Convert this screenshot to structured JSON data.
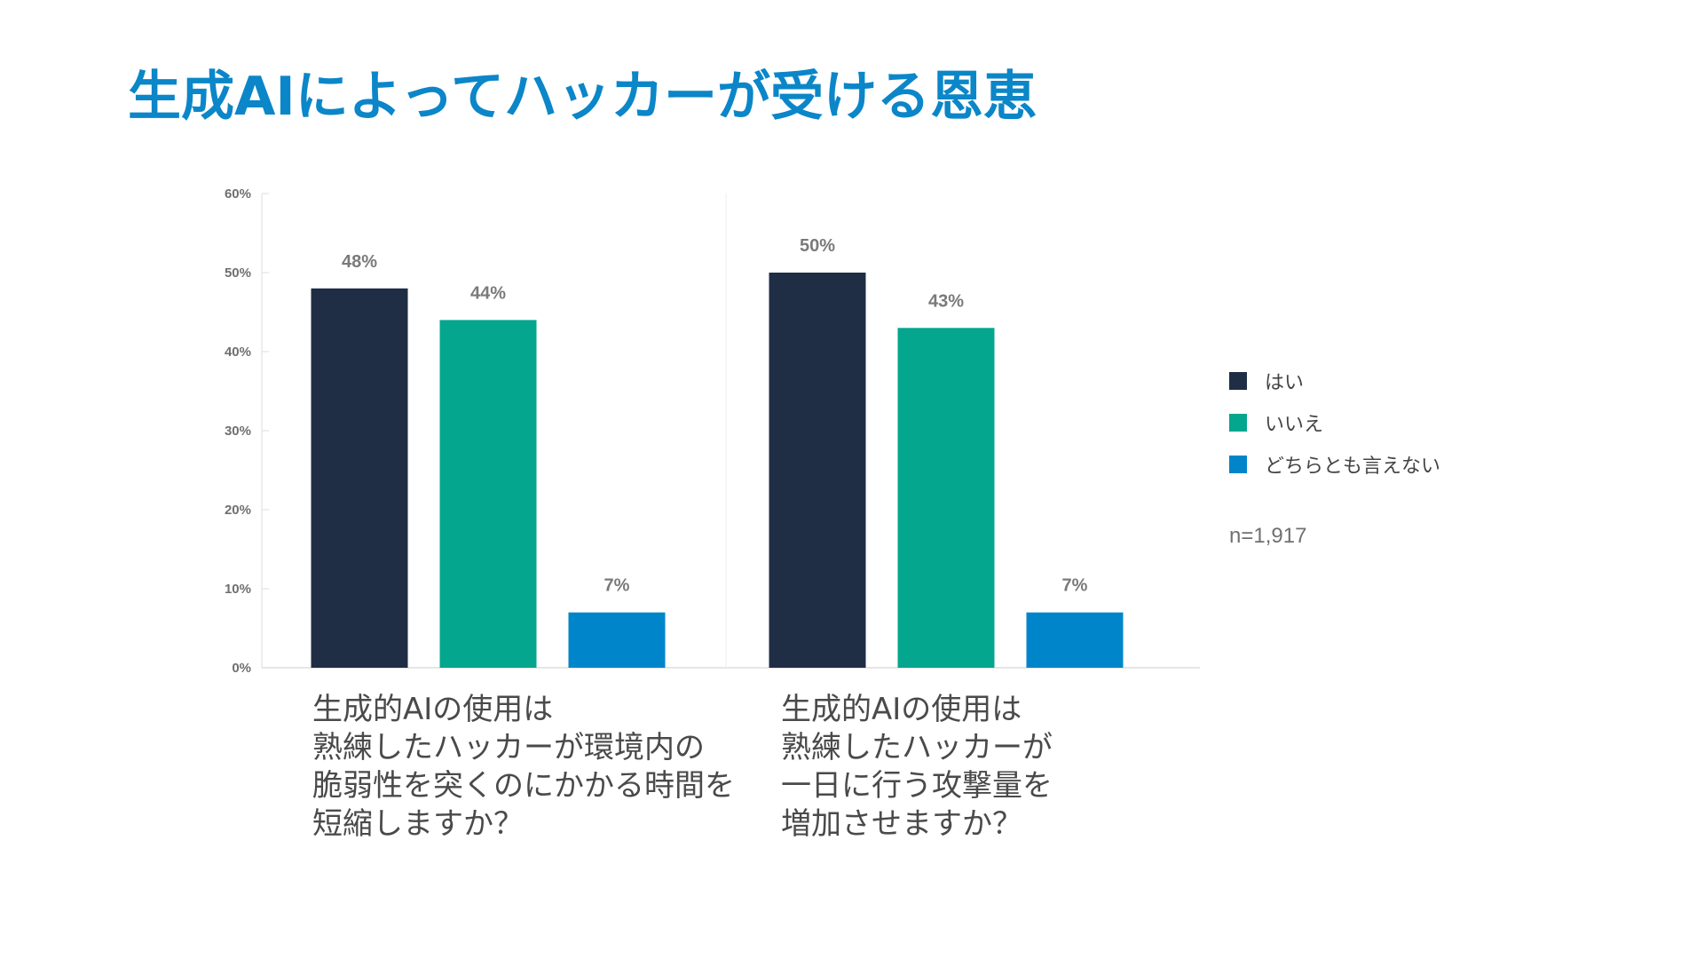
{
  "title": "生成AIによってハッカーが受ける恩恵",
  "colors": {
    "title": "#0b86c8",
    "yes": "#1f2d45",
    "no": "#04a68e",
    "neither": "#0085ca",
    "axis": "#dddddd"
  },
  "legend": [
    {
      "label": "はい",
      "color": "#1f2d45"
    },
    {
      "label": "いいえ",
      "color": "#04a68e"
    },
    {
      "label": "どちらとも言えない",
      "color": "#0085ca"
    }
  ],
  "sample_size": "n=1,917",
  "questions": [
    {
      "lines": [
        "生成的AIの使用は",
        "熟練したハッカーが環境内の",
        "脆弱性を突くのにかかる時間を",
        "短縮しますか？"
      ]
    },
    {
      "lines": [
        "生成的AIの使用は",
        "熟練したハッカーが",
        "一日に行う攻撃量を",
        "増加させますか？"
      ]
    }
  ],
  "chart_data": {
    "type": "bar",
    "title": "生成AIによってハッカーが受ける恩恵",
    "xlabel": "",
    "ylabel": "",
    "ylim": [
      0,
      60
    ],
    "yticks": [
      0,
      10,
      20,
      30,
      40,
      50,
      60
    ],
    "ytick_labels": [
      "0%",
      "10%",
      "20%",
      "30%",
      "40%",
      "50%",
      "60%"
    ],
    "grid": false,
    "legend_position": "right",
    "categories": [
      "生成的AIの使用は熟練したハッカーが環境内の脆弱性を突くのにかかる時間を短縮しますか？",
      "生成的AIの使用は熟練したハッカーが一日に行う攻撃量を増加させますか？"
    ],
    "series": [
      {
        "name": "はい",
        "values": [
          48,
          50
        ],
        "labels": [
          "48%",
          "50%"
        ],
        "color": "#1f2d45"
      },
      {
        "name": "いいえ",
        "values": [
          44,
          43
        ],
        "labels": [
          "44%",
          "43%"
        ],
        "color": "#04a68e"
      },
      {
        "name": "どちらとも言えない",
        "values": [
          7,
          7
        ],
        "labels": [
          "7%",
          "7%"
        ],
        "color": "#0085ca"
      }
    ]
  }
}
